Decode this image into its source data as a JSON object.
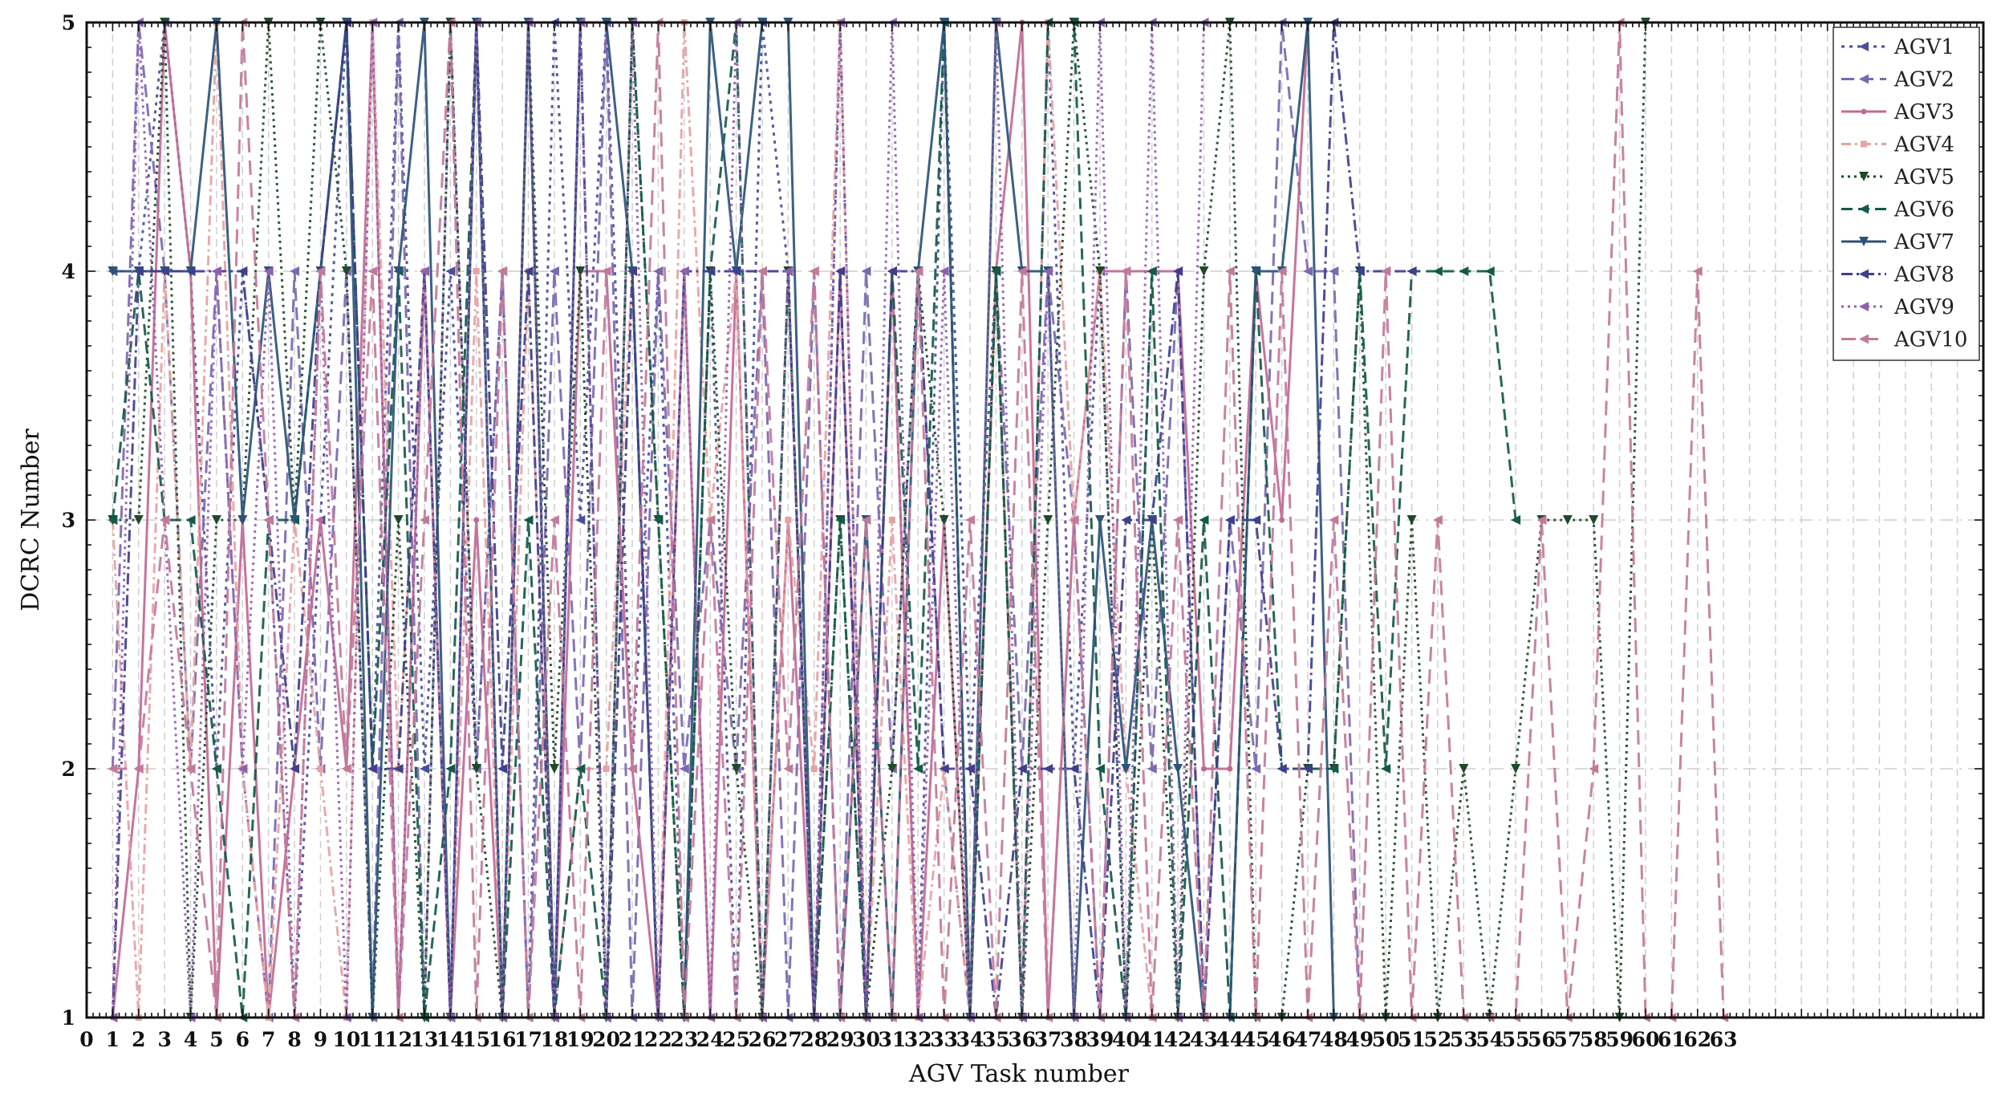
{
  "chart_data": {
    "type": "line",
    "xlabel": "AGV Task number",
    "ylabel": "DCRC Number",
    "xlim": [
      0,
      73
    ],
    "ylim": [
      1,
      5
    ],
    "x_ticks": [
      0,
      1,
      2,
      3,
      4,
      5,
      6,
      7,
      8,
      9,
      10,
      11,
      12,
      13,
      14,
      15,
      16,
      17,
      18,
      19,
      20,
      21,
      22,
      23,
      24,
      25,
      26,
      27,
      28,
      29,
      30,
      31,
      32,
      33,
      34,
      35,
      36,
      37,
      38,
      39,
      40,
      41,
      42,
      43,
      44,
      45,
      46,
      47,
      48,
      49,
      50,
      51,
      52,
      53,
      54,
      55,
      56,
      57,
      58,
      59,
      60,
      61,
      62,
      63
    ],
    "y_ticks": [
      1,
      2,
      3,
      4,
      5
    ],
    "grid": true,
    "legend_position": "top-right",
    "series": [
      {
        "name": "AGV1",
        "color": "#4a4f9a",
        "dash": "4 6",
        "marker": "triangle-left",
        "values": [
          4,
          4,
          5,
          4,
          2,
          4,
          3,
          1,
          3,
          5,
          2,
          5,
          2,
          4,
          2,
          4,
          1,
          5,
          3,
          5,
          2,
          4,
          1,
          4,
          1,
          5,
          4,
          1,
          5,
          1,
          4,
          1,
          5,
          2,
          4,
          1,
          5,
          2,
          4,
          1,
          4
        ]
      },
      {
        "name": "AGV2",
        "color": "#7b68b0",
        "dash": "16 8",
        "marker": "triangle-left",
        "values": [
          2,
          5,
          4,
          2,
          4,
          2,
          1,
          4,
          2,
          4,
          1,
          5,
          1,
          5,
          2,
          4,
          1,
          4,
          2,
          5,
          1,
          4,
          2,
          3,
          2,
          4,
          1,
          4,
          1,
          4,
          2,
          4,
          2,
          1,
          4,
          2,
          4,
          3,
          1,
          4,
          2,
          4,
          1,
          3,
          2,
          5,
          4,
          4,
          1
        ]
      },
      {
        "name": "AGV3",
        "color": "#c06a94",
        "dash": "",
        "marker": "dot",
        "values": [
          1,
          2,
          5,
          4,
          1,
          3,
          1,
          2,
          3,
          2,
          5,
          1,
          4,
          1,
          3,
          1,
          5,
          1,
          4,
          4,
          2,
          1,
          4,
          1,
          4,
          1,
          3,
          1,
          4,
          1,
          4,
          1,
          3,
          1,
          4,
          5,
          1,
          3,
          4,
          4,
          4,
          4,
          2,
          2,
          4,
          3,
          5
        ]
      },
      {
        "name": "AGV4",
        "color": "#e5a3a3",
        "dash": "12 5 3 5",
        "marker": "square",
        "values": [
          3,
          1,
          4,
          2,
          5,
          2,
          1,
          3,
          2,
          1,
          5,
          2,
          4,
          1,
          4,
          1,
          4,
          1,
          2,
          2,
          4,
          1,
          5,
          3,
          4,
          1,
          3,
          2,
          5,
          1,
          3,
          1,
          2,
          1,
          4,
          1,
          5,
          3,
          4,
          2,
          1,
          1
        ]
      },
      {
        "name": "AGV5",
        "color": "#1f4a2a",
        "dash": "3 5",
        "marker": "triangle-down",
        "values": [
          3,
          3,
          5,
          1,
          3,
          3,
          5,
          3,
          5,
          4,
          1,
          3,
          1,
          5,
          2,
          1,
          5,
          2,
          4,
          1,
          5,
          3,
          1,
          4,
          2,
          1,
          4,
          1,
          3,
          1,
          2,
          4,
          3,
          1,
          4,
          1,
          3,
          5,
          4,
          1,
          3,
          1,
          4,
          5,
          1,
          1,
          2,
          2,
          4,
          1,
          3,
          1,
          2,
          1,
          2,
          3,
          3,
          3,
          1,
          5
        ]
      },
      {
        "name": "AGV6",
        "color": "#135a4a",
        "dash": "14 7",
        "marker": "triangle-left",
        "values": [
          3,
          4,
          3,
          3,
          2,
          1,
          3,
          3,
          4,
          5,
          2,
          4,
          1,
          2,
          5,
          1,
          3,
          1,
          2,
          1,
          5,
          3,
          1,
          4,
          5,
          1,
          4,
          1,
          3,
          1,
          4,
          2,
          5,
          1,
          4,
          1,
          5,
          5,
          2,
          1,
          4,
          1,
          3,
          1,
          4,
          2,
          2,
          2,
          4,
          2,
          4,
          4,
          4,
          4,
          3
        ]
      },
      {
        "name": "AGV7",
        "color": "#2b5477",
        "dash": "",
        "marker": "triangle-down",
        "values": [
          4,
          4,
          4,
          4,
          5,
          3,
          4,
          3,
          4,
          5,
          1,
          4,
          5,
          1,
          5,
          1,
          5,
          1,
          5,
          5,
          4,
          1,
          1,
          5,
          4,
          5,
          5,
          1,
          1,
          3,
          1,
          4,
          5,
          1,
          5,
          4,
          4,
          1,
          3,
          2,
          3,
          2,
          1,
          1,
          4,
          4,
          5,
          1
        ]
      },
      {
        "name": "AGV8",
        "color": "#3f3f8c",
        "dash": "14 5 3 5",
        "marker": "triangle-left",
        "values": [
          1,
          4,
          4,
          4,
          4,
          4,
          3,
          2,
          4,
          5,
          2,
          2,
          4,
          1,
          5,
          2,
          4,
          1,
          5,
          1,
          4,
          1,
          4,
          4,
          4,
          4,
          4,
          1,
          4,
          1,
          4,
          4,
          2,
          2,
          1,
          2,
          2,
          2,
          1,
          3,
          3,
          4,
          1,
          3,
          3,
          2,
          2,
          5,
          4,
          4,
          4
        ]
      },
      {
        "name": "AGV9",
        "color": "#9060b0",
        "dash": "3 5",
        "marker": "triangle-left",
        "values": [
          1,
          5,
          3,
          1,
          4,
          2,
          4,
          1,
          4,
          1,
          5,
          1,
          4,
          1,
          5,
          1,
          5,
          1,
          5,
          1,
          5,
          1,
          4,
          1,
          5,
          1,
          4,
          1,
          5,
          1,
          5,
          1,
          4,
          1,
          5,
          1,
          4,
          1,
          5,
          1,
          5,
          1,
          5
        ]
      },
      {
        "name": "AGV10",
        "color": "#c27a9a",
        "dash": "18 10",
        "marker": "triangle-left",
        "values": [
          2,
          2,
          3,
          2,
          1,
          5,
          3,
          1,
          4,
          2,
          4,
          1,
          3,
          5,
          1,
          4,
          1,
          3,
          1,
          4,
          2,
          5,
          1,
          3,
          1,
          4,
          2,
          4,
          1,
          3,
          1,
          4,
          1,
          3,
          1,
          4,
          1,
          3,
          1,
          4,
          1,
          3,
          1,
          4,
          1,
          4,
          1,
          3,
          1,
          4,
          1,
          3,
          1,
          1,
          1,
          3,
          1,
          2,
          5,
          1,
          1,
          4,
          1
        ]
      }
    ]
  }
}
